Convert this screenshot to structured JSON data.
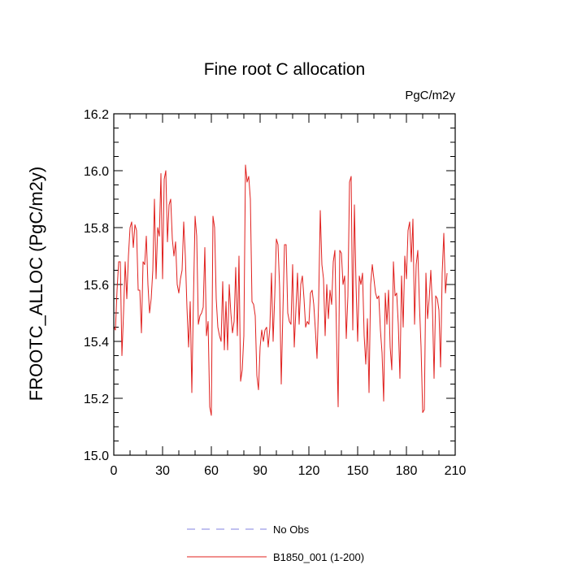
{
  "chart_data": {
    "type": "line",
    "title": "Fine root C allocation",
    "units_label": "PgC/m2y",
    "ylabel": "FROOTC_ALLOC  (PgC/m2y)",
    "xlabel": "",
    "xlim": [
      0,
      210
    ],
    "ylim": [
      15.0,
      16.2
    ],
    "xticks": [
      0,
      30,
      60,
      90,
      120,
      150,
      180,
      210
    ],
    "xtick_labels": [
      "0",
      "30",
      "60",
      "90",
      "120",
      "150",
      "180",
      "210"
    ],
    "yticks": [
      15.0,
      15.2,
      15.4,
      15.6,
      15.8,
      16.0,
      16.2
    ],
    "ytick_labels": [
      "15.0",
      "15.2",
      "15.4",
      "15.6",
      "15.8",
      "16.0",
      "16.2"
    ],
    "grid": false,
    "legend_position": "bottom-center",
    "series": [
      {
        "name": "B1850_001 (1-200)",
        "color": "#e0201e",
        "dash": "solid",
        "x_start": 0,
        "x_step": 1,
        "values": [
          15.45,
          15.44,
          15.58,
          15.68,
          15.68,
          15.35,
          15.5,
          15.68,
          15.55,
          15.7,
          15.8,
          15.82,
          15.73,
          15.81,
          15.79,
          15.58,
          15.58,
          15.43,
          15.68,
          15.67,
          15.77,
          15.6,
          15.5,
          15.55,
          15.65,
          15.9,
          15.62,
          15.8,
          15.77,
          15.99,
          15.62,
          15.97,
          16.0,
          15.75,
          15.88,
          15.9,
          15.76,
          15.7,
          15.75,
          15.6,
          15.57,
          15.62,
          15.65,
          15.82,
          15.7,
          15.52,
          15.38,
          15.54,
          15.22,
          15.55,
          15.84,
          15.77,
          15.46,
          15.49,
          15.5,
          15.52,
          15.73,
          15.42,
          15.47,
          15.17,
          15.14,
          15.84,
          15.8,
          15.55,
          15.45,
          15.42,
          15.4,
          15.61,
          15.37,
          15.54,
          15.37,
          15.6,
          15.5,
          15.43,
          15.47,
          15.66,
          15.42,
          15.7,
          15.26,
          15.3,
          15.42,
          16.02,
          15.96,
          15.98,
          15.9,
          15.54,
          15.53,
          15.49,
          15.28,
          15.23,
          15.38,
          15.44,
          15.4,
          15.44,
          15.45,
          15.38,
          15.45,
          15.64,
          15.4,
          15.56,
          15.76,
          15.74,
          15.59,
          15.25,
          15.5,
          15.74,
          15.74,
          15.5,
          15.47,
          15.46,
          15.67,
          15.38,
          15.51,
          15.64,
          15.46,
          15.6,
          15.63,
          15.55,
          15.45,
          15.47,
          15.46,
          15.57,
          15.58,
          15.53,
          15.44,
          15.34,
          15.54,
          15.86,
          15.67,
          15.62,
          15.42,
          15.6,
          15.48,
          15.58,
          15.53,
          15.68,
          15.72,
          15.42,
          15.17,
          15.72,
          15.71,
          15.6,
          15.63,
          15.41,
          15.56,
          15.96,
          15.98,
          15.44,
          15.88,
          15.6,
          15.4,
          15.63,
          15.6,
          15.64,
          15.42,
          15.32,
          15.48,
          15.22,
          15.6,
          15.67,
          15.62,
          15.57,
          15.55,
          15.56,
          15.44,
          15.36,
          15.19,
          15.57,
          15.46,
          15.58,
          15.38,
          15.3,
          15.68,
          15.56,
          15.57,
          15.46,
          15.27,
          15.63,
          15.45,
          15.7,
          15.62,
          15.79,
          15.82,
          15.68,
          15.83,
          15.46,
          15.67,
          15.72,
          15.53,
          15.38,
          15.15,
          15.16,
          15.64,
          15.48,
          15.55,
          15.65,
          15.52,
          15.27,
          15.56,
          15.55,
          15.51,
          15.31,
          15.64,
          15.78,
          15.57,
          15.64
        ]
      }
    ],
    "legend": [
      {
        "label": "No Obs",
        "color": "#8080e0",
        "dash": "dashed"
      },
      {
        "label": "B1850_001 (1-200)",
        "color": "#e0201e",
        "dash": "solid"
      }
    ]
  }
}
